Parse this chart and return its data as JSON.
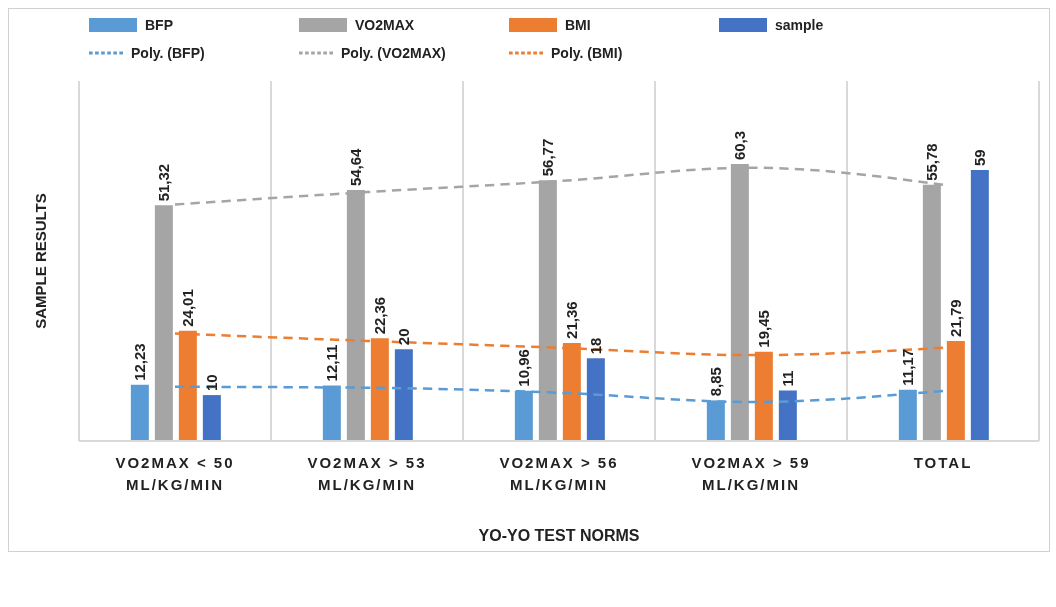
{
  "chart_data": {
    "type": "bar",
    "xlabel": "YO-YO TEST NORMS",
    "ylabel": "SAMPLE RESULTS",
    "categories": [
      "VO2MAX < 50 ML/KG/MIN",
      "VO2MAX > 53 ML/KG/MIN",
      "VO2MAX > 56 ML/KG/MIN",
      "VO2MAX > 59 ML/KG/MIN",
      "TOTAL"
    ],
    "series": [
      {
        "name": "BFP",
        "color": "#5b9bd5",
        "values": [
          12.23,
          12.11,
          10.96,
          8.85,
          11.17
        ],
        "value_labels": [
          "12,23",
          "12,11",
          "10,96",
          "8,85",
          "11,17"
        ]
      },
      {
        "name": "VO2MAX",
        "color": "#a5a5a5",
        "values": [
          51.32,
          54.64,
          56.77,
          60.3,
          55.78
        ],
        "value_labels": [
          "51,32",
          "54,64",
          "56,77",
          "60,3",
          "55,78"
        ]
      },
      {
        "name": "BMI",
        "color": "#ed7d31",
        "values": [
          24.01,
          22.36,
          21.36,
          19.45,
          21.79
        ],
        "value_labels": [
          "24,01",
          "22,36",
          "21,36",
          "19,45",
          "21,79"
        ]
      },
      {
        "name": "sample",
        "color": "#4472c4",
        "values": [
          10,
          20,
          18,
          11,
          59
        ],
        "value_labels": [
          "10",
          "20",
          "18",
          "11",
          "59"
        ]
      },
      {
        "name": "Poly. (BFP)",
        "type": "line",
        "color": "#5b9bd5",
        "values": [
          11.8,
          11.6,
          10.5,
          8.5,
          10.9
        ]
      },
      {
        "name": "Poly. (VO2MAX)",
        "type": "line",
        "color": "#a5a5a5",
        "values": [
          51.5,
          54.2,
          56.6,
          59.5,
          55.8
        ]
      },
      {
        "name": "Poly. (BMI)",
        "type": "line",
        "color": "#ed7d31",
        "values": [
          23.4,
          21.8,
          20.3,
          18.7,
          20.3
        ]
      }
    ],
    "line_style": "dashed",
    "marker": "none",
    "grid": "x",
    "legend": "top",
    "tick_labels": "x"
  }
}
